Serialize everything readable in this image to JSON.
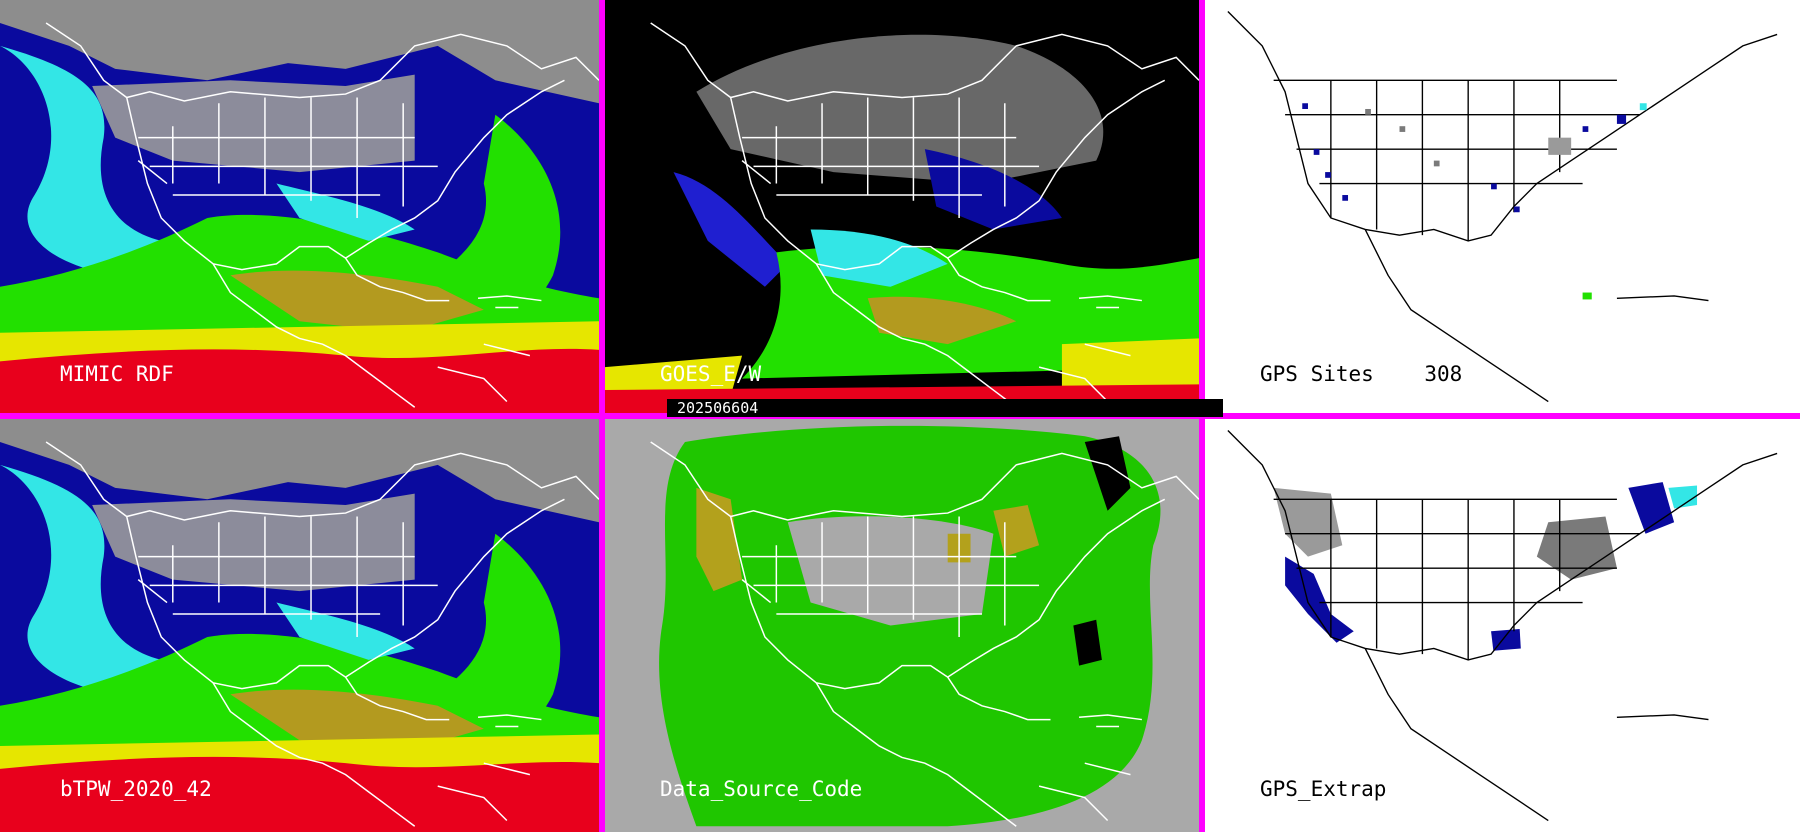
{
  "panels": {
    "mimic": {
      "label": "MIMIC RDF"
    },
    "goes": {
      "label": "GOES_E/W"
    },
    "gps_sites": {
      "label": "GPS Sites",
      "count": "308"
    },
    "btpw": {
      "label": "bTPW_2020_42"
    },
    "data_source": {
      "label": "Data_Source_Code"
    },
    "gps_extrap": {
      "label": "GPS_Extrap"
    }
  },
  "timestamp": "202506604",
  "colors": {
    "divider": "#ff00ff",
    "red": "#e8001c",
    "yellow": "#e6e600",
    "olive": "#b39a1f",
    "green": "#22e000",
    "cyan": "#33e6e6",
    "navy": "#0a0a9e",
    "blue": "#1f1fd0",
    "grey": "#9a9a9a",
    "source_grey": "#a9a9a9",
    "source_green": "#1fc600",
    "source_olive": "#b3a11c"
  }
}
